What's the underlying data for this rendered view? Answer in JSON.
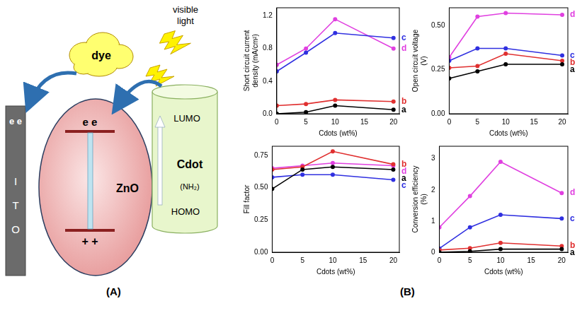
{
  "panel_labels": [
    "(A)",
    "(B)"
  ],
  "diagram": {
    "light_label": "visible light",
    "dye": "dye",
    "ito": "ITO",
    "ito_electrons": [
      "e",
      "e"
    ],
    "zno": "ZnO",
    "zno_electrons": [
      "e",
      "e"
    ],
    "zno_holes": [
      "+",
      "+"
    ],
    "cdot": {
      "lumo": "LUMO",
      "name": "Cdot",
      "group": "(NH₂)",
      "homo": "HOMO"
    }
  },
  "chart_data": [
    {
      "type": "line",
      "x_label": "Cdots (wt%)",
      "y_label": "Short circuit current density (mA/cm²)",
      "x": [
        0,
        5,
        10,
        20
      ],
      "xlim": [
        0,
        21
      ],
      "xticks": [
        0,
        5,
        10,
        15,
        20
      ],
      "ylim": [
        0,
        1.3
      ],
      "yticks": [
        {
          "value": 0,
          "label": "0.0"
        },
        {
          "value": 0.4,
          "label": "0.4"
        },
        {
          "value": 0.8,
          "label": "0.8"
        },
        {
          "value": 1.2,
          "label": "1.2"
        }
      ],
      "grid": false,
      "marker": "circle",
      "series": [
        {
          "name": "a",
          "color": "#000000",
          "values": [
            0.0,
            0.02,
            0.1,
            0.05
          ]
        },
        {
          "name": "b",
          "color": "#e03030",
          "values": [
            0.1,
            0.12,
            0.17,
            0.15
          ]
        },
        {
          "name": "c",
          "color": "#3030e0",
          "values": [
            0.52,
            0.75,
            0.99,
            0.93
          ]
        },
        {
          "name": "d",
          "color": "#e040e0",
          "values": [
            0.6,
            0.8,
            1.16,
            0.8
          ]
        }
      ]
    },
    {
      "type": "line",
      "x_label": "Cdots (wt%)",
      "y_label": "Open circuit voltage (V)",
      "x": [
        0,
        5,
        10,
        20
      ],
      "xlim": [
        0,
        21
      ],
      "xticks": [
        0,
        5,
        10,
        15,
        20
      ],
      "ylim": [
        0,
        0.6
      ],
      "yticks": [
        {
          "value": 0,
          "label": "0.00"
        },
        {
          "value": 0.25,
          "label": "0.25"
        },
        {
          "value": 0.5,
          "label": "0.50"
        }
      ],
      "grid": false,
      "marker": "circle",
      "series": [
        {
          "name": "a",
          "color": "#000000",
          "values": [
            0.2,
            0.24,
            0.28,
            0.28
          ]
        },
        {
          "name": "b",
          "color": "#e03030",
          "values": [
            0.26,
            0.27,
            0.34,
            0.3
          ]
        },
        {
          "name": "c",
          "color": "#3030e0",
          "values": [
            0.3,
            0.37,
            0.37,
            0.33
          ]
        },
        {
          "name": "d",
          "color": "#e040e0",
          "values": [
            0.32,
            0.55,
            0.57,
            0.56
          ]
        }
      ]
    },
    {
      "type": "line",
      "x_label": "Cdots (wt%)",
      "y_label": "Fill factor",
      "x": [
        0,
        5,
        10,
        20
      ],
      "xlim": [
        0,
        21
      ],
      "xticks": [
        0,
        5,
        10,
        15,
        20
      ],
      "ylim": [
        0,
        0.82
      ],
      "yticks": [
        {
          "value": 0,
          "label": "0.00"
        },
        {
          "value": 0.25,
          "label": "0.25"
        },
        {
          "value": 0.5,
          "label": "0.50"
        },
        {
          "value": 0.75,
          "label": "0.75"
        }
      ],
      "grid": false,
      "marker": "circle",
      "series": [
        {
          "name": "a",
          "color": "#000000",
          "values": [
            0.49,
            0.64,
            0.66,
            0.64
          ]
        },
        {
          "name": "b",
          "color": "#e03030",
          "values": [
            0.64,
            0.66,
            0.78,
            0.68
          ]
        },
        {
          "name": "c",
          "color": "#3030e0",
          "values": [
            0.58,
            0.6,
            0.6,
            0.56
          ]
        },
        {
          "name": "d",
          "color": "#e040e0",
          "values": [
            0.65,
            0.67,
            0.69,
            0.67
          ]
        }
      ]
    },
    {
      "type": "line",
      "x_label": "Cdots (wt%)",
      "y_label": "Conversion efficiency (%)",
      "x": [
        0,
        5,
        10,
        20
      ],
      "xlim": [
        0,
        21
      ],
      "xticks": [
        0,
        5,
        10,
        15,
        20
      ],
      "ylim": [
        0,
        3.4
      ],
      "yticks": [
        0,
        1,
        2,
        3
      ],
      "grid": false,
      "marker": "circle",
      "series": [
        {
          "name": "a",
          "color": "#000000",
          "values": [
            0.0,
            0.03,
            0.1,
            0.1
          ]
        },
        {
          "name": "b",
          "color": "#e03030",
          "values": [
            0.07,
            0.13,
            0.3,
            0.2
          ]
        },
        {
          "name": "c",
          "color": "#3030e0",
          "values": [
            0.12,
            0.8,
            1.2,
            1.08
          ]
        },
        {
          "name": "d",
          "color": "#e040e0",
          "values": [
            0.8,
            1.8,
            2.9,
            1.9
          ]
        }
      ]
    }
  ]
}
